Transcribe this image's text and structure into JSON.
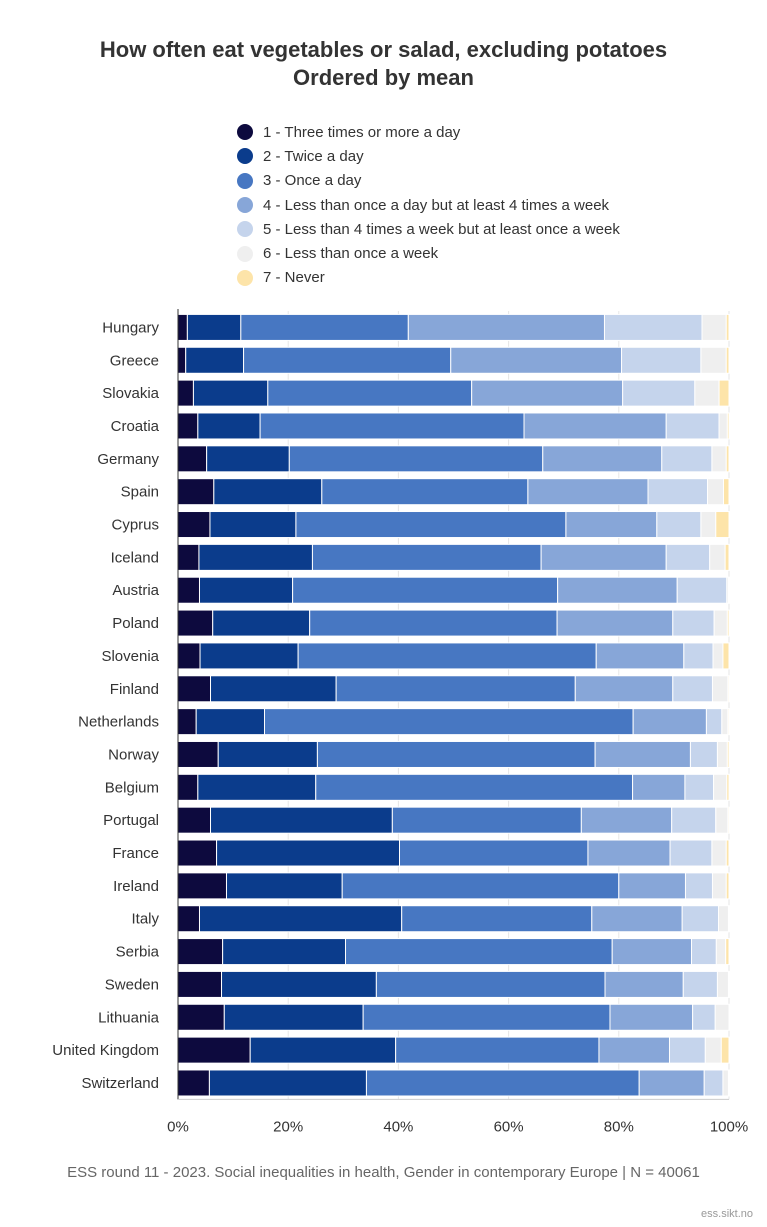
{
  "chart_data": {
    "type": "bar",
    "orientation": "horizontal",
    "stacked": "percent",
    "title": "How often eat vegetables or salad, excluding potatoes",
    "subtitle": "Ordered by mean",
    "xlim": [
      0,
      100
    ],
    "x_ticks": [
      "0%",
      "20%",
      "40%",
      "60%",
      "80%",
      "100%"
    ],
    "x_tick_values": [
      0,
      20,
      40,
      60,
      80,
      100
    ],
    "categories": [
      "Hungary",
      "Greece",
      "Slovakia",
      "Croatia",
      "Germany",
      "Spain",
      "Cyprus",
      "Iceland",
      "Austria",
      "Poland",
      "Slovenia",
      "Finland",
      "Netherlands",
      "Norway",
      "Belgium",
      "Portugal",
      "France",
      "Ireland",
      "Italy",
      "Serbia",
      "Sweden",
      "Lithuania",
      "United Kingdom",
      "Switzerland"
    ],
    "series": [
      {
        "name": "1 - Three times or more a day",
        "color": "#0d0a3e",
        "values": [
          1.7,
          1.4,
          2.8,
          3.6,
          5.2,
          6.5,
          5.8,
          3.8,
          3.9,
          6.3,
          4.0,
          5.9,
          3.3,
          7.3,
          3.6,
          5.9,
          7.0,
          8.8,
          3.9,
          8.1,
          7.9,
          8.4,
          13.1,
          5.7
        ]
      },
      {
        "name": "2 - Twice a day",
        "color": "#0b3c8c",
        "values": [
          9.7,
          10.5,
          13.5,
          11.3,
          15.0,
          19.6,
          15.6,
          20.6,
          16.9,
          17.6,
          17.8,
          22.8,
          12.4,
          18.0,
          21.4,
          33.0,
          33.2,
          21.0,
          36.7,
          22.3,
          28.1,
          25.2,
          26.4,
          28.5
        ]
      },
      {
        "name": "3 - Once a day",
        "color": "#4777c2",
        "values": [
          30.4,
          37.6,
          37.0,
          47.9,
          46.0,
          37.4,
          49.0,
          41.5,
          48.1,
          44.9,
          54.1,
          43.4,
          66.9,
          50.4,
          57.5,
          34.3,
          34.2,
          50.2,
          34.5,
          48.4,
          41.5,
          44.8,
          36.9,
          49.5
        ]
      },
      {
        "name": "4 - Less than once a day but at least 4 times a week",
        "color": "#87a6d8",
        "values": [
          35.6,
          31.0,
          27.4,
          25.8,
          21.6,
          21.8,
          16.5,
          22.7,
          21.7,
          21.0,
          15.9,
          17.7,
          13.3,
          17.3,
          9.5,
          16.4,
          14.9,
          12.1,
          16.4,
          14.4,
          14.2,
          15.0,
          12.8,
          11.8
        ]
      },
      {
        "name": "5 - Less than 4 times a week but at least once a week",
        "color": "#c5d4ec",
        "values": [
          17.7,
          14.4,
          13.1,
          9.6,
          9.1,
          10.8,
          8.0,
          7.9,
          9.0,
          7.5,
          5.3,
          7.2,
          2.8,
          4.9,
          5.2,
          8.0,
          7.6,
          4.9,
          6.6,
          4.5,
          6.2,
          4.1,
          6.5,
          3.4
        ]
      },
      {
        "name": "6 - Less than once a week",
        "color": "#efefef",
        "values": [
          4.4,
          4.6,
          4.4,
          1.5,
          2.6,
          2.9,
          2.7,
          2.8,
          0.3,
          2.4,
          1.8,
          2.8,
          1.1,
          1.8,
          2.4,
          2.2,
          2.6,
          2.5,
          1.8,
          1.7,
          2.0,
          2.5,
          2.9,
          1.0
        ]
      },
      {
        "name": "7 - Never",
        "color": "#fde4a9",
        "values": [
          0.5,
          0.5,
          1.8,
          0.3,
          0.5,
          1.0,
          2.4,
          0.7,
          0.1,
          0.3,
          1.1,
          0.2,
          0.2,
          0.3,
          0.4,
          0.2,
          0.5,
          0.5,
          0.1,
          0.6,
          0.1,
          0.0,
          1.4,
          0.1
        ]
      }
    ]
  },
  "caption": "ESS round 11 - 2023. Social inequalities in health, Gender in contemporary Europe | N = 40061",
  "credit": "ess.sikt.no"
}
